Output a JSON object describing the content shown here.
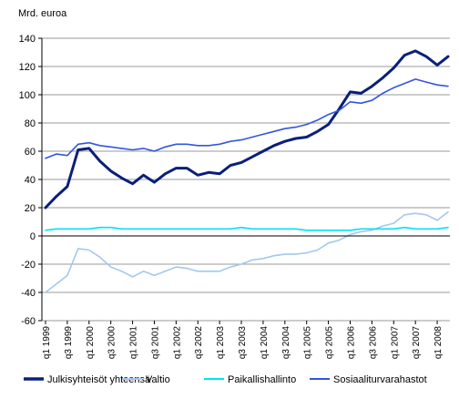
{
  "chart_data": {
    "type": "line",
    "ylabel": "Mrd. euroa",
    "ylim": [
      -60,
      140
    ],
    "yticks": [
      140,
      120,
      100,
      80,
      60,
      40,
      20,
      0,
      -20,
      -40,
      -60
    ],
    "x": [
      "q1 1999",
      "q2 1999",
      "q3 1999",
      "q4 1999",
      "q1 2000",
      "q2 2000",
      "q3 2000",
      "q4 2000",
      "q1 2001",
      "q2 2001",
      "q3 2001",
      "q4 2001",
      "q1 2002",
      "q2 2002",
      "q3 2002",
      "q4 2002",
      "q1 2003",
      "q2 2003",
      "q3 2003",
      "q4 2003",
      "q1 2004",
      "q2 2004",
      "q3 2004",
      "q4 2004",
      "q1 2005",
      "q2 2005",
      "q3 2005",
      "q4 2005",
      "q1 2006",
      "q2 2006",
      "q3 2006",
      "q4 2006",
      "q1 2007",
      "q2 2007",
      "q3 2007",
      "q4 2007",
      "q1 2008",
      "q2 2008"
    ],
    "xtick_labels": [
      "q1 1999",
      "q3 1999",
      "q1 2000",
      "q3 2000",
      "q1 2001",
      "q3 2001",
      "q1 2002",
      "q3 2002",
      "q1 2003",
      "q3 2003",
      "q1 2004",
      "q3 2004",
      "q1 2005",
      "q3 2005",
      "q1 2006",
      "q3 2006",
      "q1 2007",
      "q3 2007",
      "q1 2008"
    ],
    "grid": "horizontal",
    "legend_position": "bottom",
    "series": [
      {
        "name": "Julkisyhteisöt yhteensä",
        "color": "#0a1f7a",
        "width": 3,
        "values": [
          20,
          28,
          35,
          61,
          62,
          53,
          46,
          41,
          37,
          43,
          38,
          44,
          48,
          48,
          43,
          45,
          44,
          50,
          52,
          56,
          60,
          64,
          67,
          69,
          70,
          74,
          79,
          90,
          102,
          101,
          106,
          112,
          119,
          128,
          131,
          127,
          121,
          127
        ]
      },
      {
        "name": "Valtio",
        "color": "#a3c8f0",
        "width": 1.6,
        "values": [
          -40,
          -34,
          -28,
          -9,
          -10,
          -15,
          -22,
          -25,
          -29,
          -25,
          -28,
          -25,
          -22,
          -23,
          -25,
          -25,
          -25,
          -22,
          -20,
          -17,
          -16,
          -14,
          -13,
          -13,
          -12,
          -10,
          -5,
          -3,
          1,
          3,
          4,
          7,
          9,
          15,
          16,
          15,
          11,
          17
        ]
      },
      {
        "name": "Paikallishallinto",
        "color": "#00e4f2",
        "width": 1.6,
        "values": [
          4,
          5,
          5,
          5,
          5,
          6,
          6,
          5,
          5,
          5,
          5,
          5,
          5,
          5,
          5,
          5,
          5,
          5,
          6,
          5,
          5,
          5,
          5,
          5,
          4,
          4,
          4,
          4,
          4,
          5,
          5,
          5,
          5,
          6,
          5,
          5,
          5,
          6
        ]
      },
      {
        "name": "Sosiaaliturvarahastot",
        "color": "#3355dd",
        "width": 1.6,
        "values": [
          55,
          58,
          57,
          65,
          66,
          64,
          63,
          62,
          61,
          62,
          60,
          63,
          65,
          65,
          64,
          64,
          65,
          67,
          68,
          70,
          72,
          74,
          76,
          77,
          79,
          82,
          86,
          89,
          95,
          94,
          96,
          101,
          105,
          108,
          111,
          109,
          107,
          106
        ]
      }
    ]
  }
}
